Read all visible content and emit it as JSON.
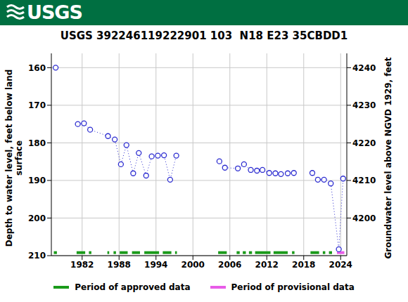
{
  "chart_data": {
    "type": "line",
    "logo_text": "USGS",
    "title": "USGS 392246119222901 103  N18 E23 35CBDD1",
    "y_label": [
      "Depth to water level, feet below land",
      "surface"
    ],
    "y2_label": "Groundwater level above NGVD 1929, feet",
    "x": [
      1977.7,
      1979.5,
      1981.3,
      1982.3,
      1983.3,
      1986.2,
      1987.3,
      1988.3,
      1989.2,
      1990.3,
      1991.2,
      1992.4,
      1993.3,
      1994.3,
      1995.3,
      1996.3,
      1997.3,
      2000.8,
      2004.3,
      2005.2,
      2007.3,
      2008.3,
      2009.4,
      2010.4,
      2011.3,
      2012.4,
      2013.4,
      2014.3,
      2015.4,
      2016.4,
      2017.9,
      2019.4,
      2020.3,
      2021.3,
      2022.4,
      2023.7,
      2024.4
    ],
    "values": [
      160.0,
      null,
      175.0,
      174.8,
      176.5,
      178.2,
      179.1,
      185.7,
      180.6,
      188.1,
      182.7,
      188.7,
      183.6,
      183.4,
      183.3,
      189.8,
      183.4,
      null,
      184.9,
      186.6,
      186.8,
      185.7,
      187.2,
      187.4,
      187.2,
      188.0,
      188.1,
      188.3,
      188.1,
      188.0,
      null,
      188.0,
      189.8,
      189.8,
      190.8,
      208.3,
      189.5
    ],
    "color": "#2c2cd0",
    "marker": "circle",
    "line_style": "dotted",
    "xlim": [
      1977,
      2025
    ],
    "xticks": [
      1982,
      1988,
      1994,
      2000,
      2006,
      2012,
      2018,
      2024
    ],
    "ylim": [
      156.2,
      210
    ],
    "yticks": [
      160,
      170,
      180,
      190,
      200,
      210
    ],
    "y2lim": [
      4190,
      4243.8
    ],
    "y2ticks": [
      4200,
      4210,
      4220,
      4230,
      4240
    ],
    "grid": true,
    "legend": "bottom",
    "periods": [
      {
        "name": "Period of approved data",
        "color": "#1a9a1a",
        "ranges": [
          [
            1977.4,
            1977.9
          ],
          [
            1981.1,
            1982.5
          ],
          [
            1983.1,
            1983.5
          ],
          [
            1986.1,
            1986.4
          ],
          [
            1987.1,
            1987.5
          ],
          [
            1988.1,
            1989.4
          ],
          [
            1990.1,
            1991.4
          ],
          [
            1992.1,
            1994.5
          ],
          [
            1995.1,
            1996.5
          ],
          [
            1997.1,
            1997.4
          ],
          [
            2004.1,
            2005.5
          ],
          [
            2007.1,
            2007.6
          ],
          [
            2008.1,
            2008.6
          ],
          [
            2009.1,
            2009.6
          ],
          [
            2010.1,
            2012.6
          ],
          [
            2013.1,
            2015.4
          ],
          [
            2016.1,
            2016.5
          ],
          [
            2019.1,
            2020.5
          ],
          [
            2021.1,
            2021.5
          ],
          [
            2022.1,
            2022.6
          ]
        ]
      },
      {
        "name": "Period of provisional data",
        "color": "#e85ce8",
        "ranges": [
          [
            2023.4,
            2024.6
          ]
        ]
      }
    ]
  }
}
